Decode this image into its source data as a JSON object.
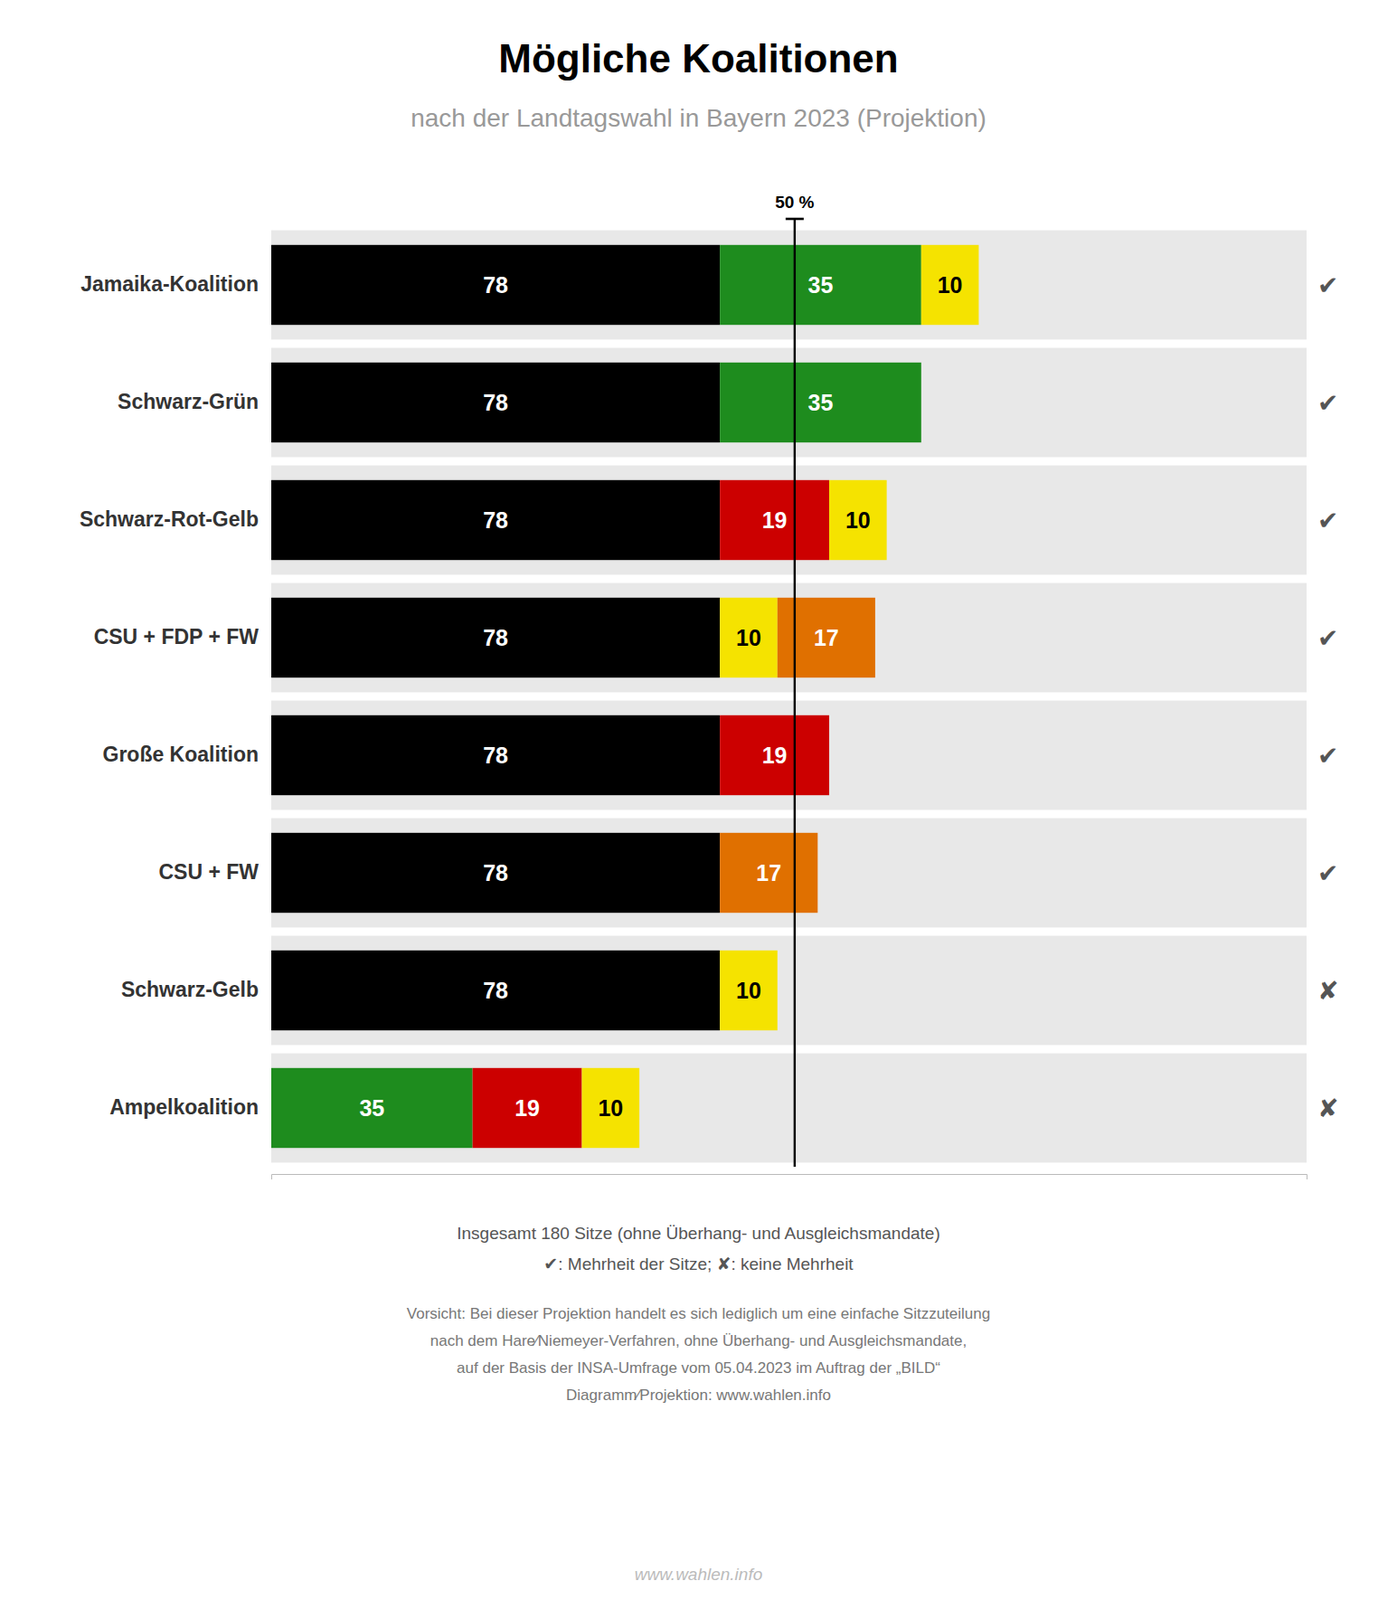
{
  "chart_data": {
    "type": "bar",
    "orientation": "horizontal",
    "stacked": true,
    "data_labels": true,
    "tick_labels": "y",
    "title": "Mögliche Koalitionen",
    "subtitle": "nach der Landtagswahl in Bayern 2023 (Projektion)",
    "categories": [
      "Jamaika-Koalition",
      "Schwarz-Grün",
      "Schwarz-Rot-Gelb",
      "CSU + FDP + FW",
      "Große Koalition",
      "CSU + FW",
      "Schwarz-Gelb",
      "Ampelkoalition"
    ],
    "series": [
      {
        "values": [
          78,
          78,
          78,
          78,
          78,
          78,
          78,
          35
        ],
        "colors": [
          "#000000",
          "#000000",
          "#000000",
          "#000000",
          "#000000",
          "#000000",
          "#000000",
          "#1e8c1e"
        ]
      },
      {
        "values": [
          35,
          35,
          19,
          10,
          19,
          17,
          10,
          19
        ],
        "colors": [
          "#1e8c1e",
          "#1e8c1e",
          "#cc0000",
          "#f5e300",
          "#cc0000",
          "#e07000",
          "#f5e300",
          "#cc0000"
        ]
      },
      {
        "values": [
          10,
          null,
          10,
          17,
          null,
          null,
          null,
          10
        ],
        "colors": [
          "#f5e300",
          null,
          "#f5e300",
          "#e07000",
          null,
          null,
          null,
          "#f5e300"
        ]
      }
    ],
    "xlim": [
      0,
      180
    ],
    "annotations": [
      {
        "x": 91,
        "text": "50 %"
      }
    ],
    "symbols": [
      "✔",
      "✔",
      "✔",
      "✔",
      "✔",
      "✔",
      "✘",
      "✘"
    ],
    "footer": [
      "Insgesamt 180 Sitze (ohne Überhang- und Ausgleichsmandate)",
      "✔: Mehrheit der Sitze; ✘: keine Mehrheit",
      "Vorsicht: Bei dieser Projektion handelt es sich lediglich um eine einfache Sitzzuteilung",
      "nach dem Hare∕Niemeyer-Verfahren, ohne Überhang- und Ausgleichsmandate,",
      "auf der Basis der INSA-Umfrage vom 05.04.2023 im Auftrag der „BILD“",
      "Diagramm∕Projektion: www.wahlen.info"
    ],
    "watermark": "www.wahlen.info"
  }
}
